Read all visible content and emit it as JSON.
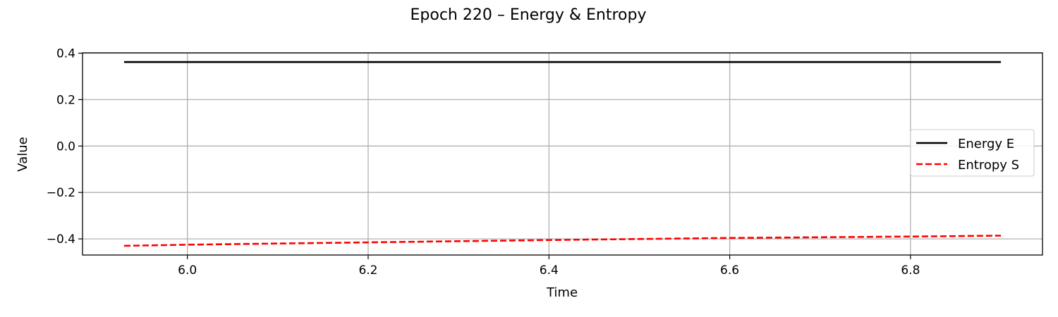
{
  "chart_data": {
    "type": "line",
    "title": "Epoch 220 – Energy & Entropy",
    "xlabel": "Time",
    "ylabel": "Value",
    "xlim": [
      5.884,
      6.946
    ],
    "ylim": [
      -0.4695,
      0.4015
    ],
    "x_ticks": [
      6.0,
      6.2,
      6.4,
      6.6,
      6.8
    ],
    "x_tick_labels": [
      "6.0",
      "6.2",
      "6.4",
      "6.6",
      "6.8"
    ],
    "y_ticks": [
      0.4,
      0.2,
      0.0,
      -0.2,
      -0.4
    ],
    "y_tick_labels": [
      "0.4",
      "0.2",
      "0.0",
      "−0.2",
      "−0.4"
    ],
    "grid": true,
    "legend_position": "center-right",
    "series": [
      {
        "name": "Energy E",
        "color": "#000000",
        "style": "solid",
        "x": [
          5.93,
          6.2,
          6.5,
          6.8,
          6.9
        ],
        "y": [
          0.362,
          0.362,
          0.362,
          0.362,
          0.362
        ]
      },
      {
        "name": "Entropy S",
        "color": "#ff0000",
        "style": "dashed",
        "x": [
          5.93,
          6.0,
          6.2,
          6.4,
          6.6,
          6.8,
          6.9
        ],
        "y": [
          -0.43,
          -0.425,
          -0.415,
          -0.405,
          -0.396,
          -0.39,
          -0.386
        ]
      }
    ]
  }
}
